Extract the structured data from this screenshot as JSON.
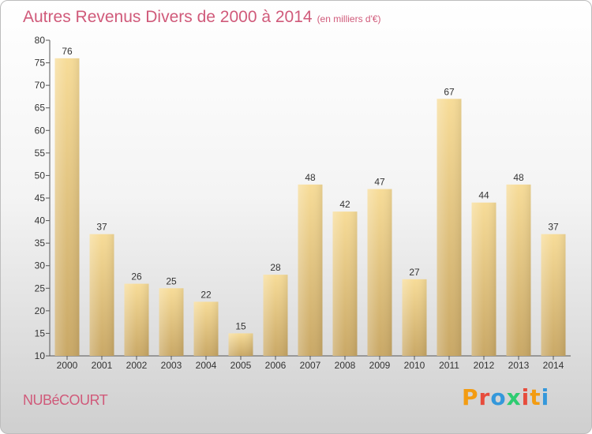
{
  "title": "Autres Revenus Divers de 2000 à 2014",
  "subtitle": "(en milliers d'€)",
  "commune": "NUBéCOURT",
  "brand": {
    "letters": [
      "P",
      "r",
      "o",
      "x",
      "i",
      "t",
      "i"
    ],
    "colors": [
      "#f39c12",
      "#e74c3c",
      "#3498db",
      "#2ecc71",
      "#e74c3c",
      "#f39c12",
      "#3498db"
    ]
  },
  "colors": {
    "bar_light": "#f7dc98",
    "bar_dark": "#c9a866",
    "axis": "#555555",
    "title": "#d05a7a"
  },
  "chart_data": {
    "type": "bar",
    "categories": [
      "2000",
      "2001",
      "2002",
      "2003",
      "2004",
      "2005",
      "2006",
      "2007",
      "2008",
      "2009",
      "2010",
      "2011",
      "2012",
      "2013",
      "2014"
    ],
    "values": [
      76,
      37,
      26,
      25,
      22,
      15,
      28,
      48,
      42,
      47,
      27,
      67,
      44,
      48,
      37
    ],
    "ylim": [
      10,
      80
    ],
    "yticks": [
      10,
      15,
      20,
      25,
      30,
      35,
      40,
      45,
      50,
      55,
      60,
      65,
      70,
      75,
      80
    ],
    "grid": false,
    "data_labels": true
  }
}
